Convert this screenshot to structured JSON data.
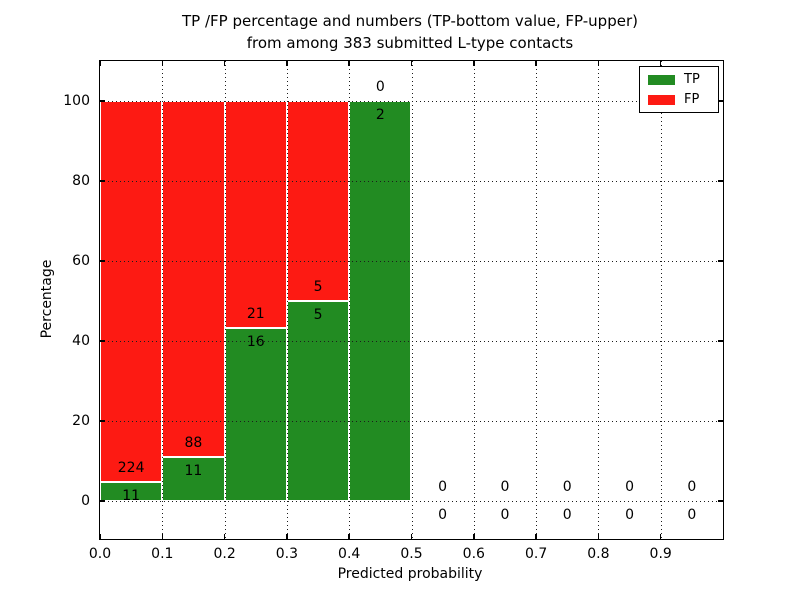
{
  "figure": {
    "title_line1": "TP /FP percentage and numbers (TP-bottom value, FP-upper)",
    "title_line2": "from among 383 submitted L-type contacts"
  },
  "chart_data": {
    "type": "bar",
    "stacked": true,
    "title": "TP /FP percentage and numbers (TP-bottom value, FP-upper)\nfrom among 383 submitted L-type contacts",
    "xlabel": "Predicted probability",
    "ylabel": "Percentage",
    "xlim": [
      0.0,
      1.0
    ],
    "ylim": [
      -9.5,
      110
    ],
    "grid": "dotted-both-axes-on-top",
    "colors": {
      "tp": "#228b22",
      "fp": "#fd1a13",
      "bar_edge": "#ffffff"
    },
    "x_ticks": [
      {
        "value": 0.0,
        "label": "0.0"
      },
      {
        "value": 0.1,
        "label": "0.1"
      },
      {
        "value": 0.2,
        "label": "0.2"
      },
      {
        "value": 0.3,
        "label": "0.3"
      },
      {
        "value": 0.4,
        "label": "0.4"
      },
      {
        "value": 0.5,
        "label": "0.5"
      },
      {
        "value": 0.6,
        "label": "0.6"
      },
      {
        "value": 0.7,
        "label": "0.7"
      },
      {
        "value": 0.8,
        "label": "0.8"
      },
      {
        "value": 0.9,
        "label": "0.9"
      }
    ],
    "y_ticks": [
      {
        "value": 0,
        "label": "0"
      },
      {
        "value": 20,
        "label": "20"
      },
      {
        "value": 40,
        "label": "40"
      },
      {
        "value": 60,
        "label": "60"
      },
      {
        "value": 80,
        "label": "80"
      },
      {
        "value": 100,
        "label": "100"
      }
    ],
    "bins": [
      {
        "x_start": 0.0,
        "x_end": 0.1,
        "tp_count": 11,
        "fp_count": 224,
        "tp_pct": 4.68,
        "fp_pct": 95.32
      },
      {
        "x_start": 0.1,
        "x_end": 0.2,
        "tp_count": 11,
        "fp_count": 88,
        "tp_pct": 11.11,
        "fp_pct": 88.89
      },
      {
        "x_start": 0.2,
        "x_end": 0.3,
        "tp_count": 16,
        "fp_count": 21,
        "tp_pct": 43.24,
        "fp_pct": 56.76
      },
      {
        "x_start": 0.3,
        "x_end": 0.4,
        "tp_count": 5,
        "fp_count": 5,
        "tp_pct": 50.0,
        "fp_pct": 50.0
      },
      {
        "x_start": 0.4,
        "x_end": 0.5,
        "tp_count": 2,
        "fp_count": 0,
        "tp_pct": 100.0,
        "fp_pct": 0.0
      },
      {
        "x_start": 0.5,
        "x_end": 0.6,
        "tp_count": 0,
        "fp_count": 0,
        "tp_pct": 0.0,
        "fp_pct": 0.0
      },
      {
        "x_start": 0.6,
        "x_end": 0.7,
        "tp_count": 0,
        "fp_count": 0,
        "tp_pct": 0.0,
        "fp_pct": 0.0
      },
      {
        "x_start": 0.7,
        "x_end": 0.8,
        "tp_count": 0,
        "fp_count": 0,
        "tp_pct": 0.0,
        "fp_pct": 0.0
      },
      {
        "x_start": 0.8,
        "x_end": 0.9,
        "tp_count": 0,
        "fp_count": 0,
        "tp_pct": 0.0,
        "fp_pct": 0.0
      },
      {
        "x_start": 0.9,
        "x_end": 1.0,
        "tp_count": 0,
        "fp_count": 0,
        "tp_pct": 0.0,
        "fp_pct": 0.0
      }
    ],
    "annotation_rule": "FP count centered 3.5 pct-units above TP/FP boundary, TP count 3.5 below",
    "annotation_offset_units": 3.5,
    "legend": {
      "position": "upper right",
      "entries": [
        {
          "label": "TP",
          "color": "#228b22"
        },
        {
          "label": "FP",
          "color": "#fd1a13"
        }
      ]
    }
  }
}
